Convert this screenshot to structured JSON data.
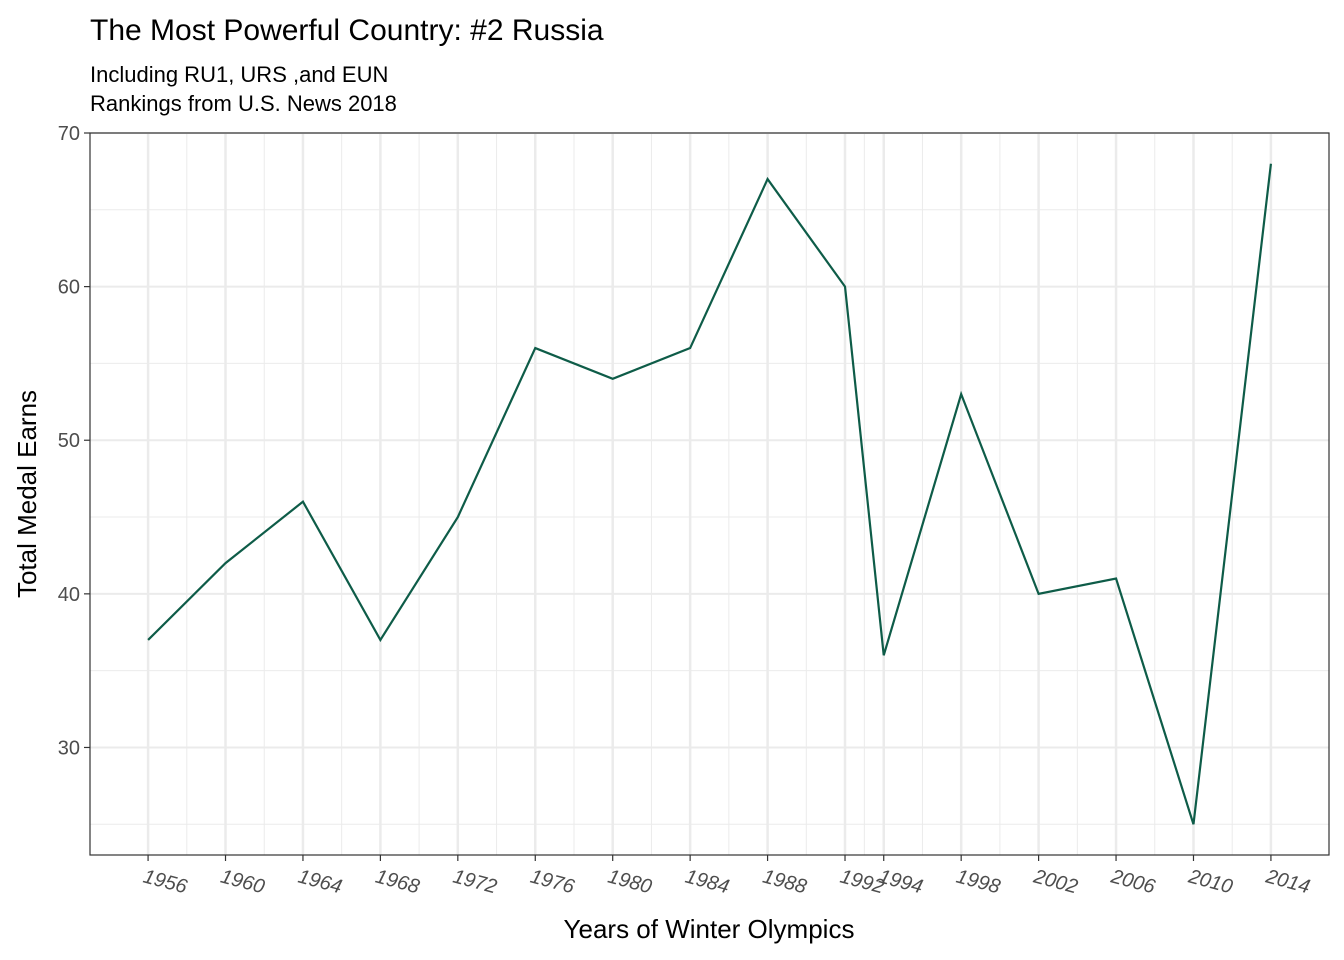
{
  "chart_data": {
    "type": "line",
    "title": "The Most Powerful Country: #2 Russia",
    "subtitle_lines": [
      "Including RU1, URS ,and EUN",
      "Rankings from U.S. News 2018"
    ],
    "xlabel": "Years of Winter Olympics",
    "ylabel": "Total Medal Earns",
    "x": [
      1956,
      1960,
      1964,
      1968,
      1972,
      1976,
      1980,
      1984,
      1988,
      1992,
      1994,
      1998,
      2002,
      2006,
      2010,
      2014
    ],
    "x_tick_labels": [
      "1956",
      "1960",
      "1964",
      "1968",
      "1972",
      "1976",
      "1980",
      "1984",
      "1988",
      "1992",
      "1994",
      "1998",
      "2002",
      "2006",
      "2010",
      "2014"
    ],
    "series": [
      {
        "values": [
          37,
          42,
          46,
          37,
          45,
          56,
          54,
          56,
          67,
          60,
          36,
          53,
          40,
          41,
          25,
          68
        ],
        "color": "#0e5c48"
      }
    ],
    "y_ticks": [
      30,
      40,
      50,
      60,
      70
    ],
    "y_tick_labels": [
      "30",
      "40",
      "50",
      "60",
      "70"
    ],
    "ylim": [
      23,
      70
    ],
    "xlim": [
      1953,
      2017
    ],
    "grid": true,
    "scale": "continuous",
    "grid_color": "#ebebeb",
    "panel_border_color": "#333333"
  }
}
